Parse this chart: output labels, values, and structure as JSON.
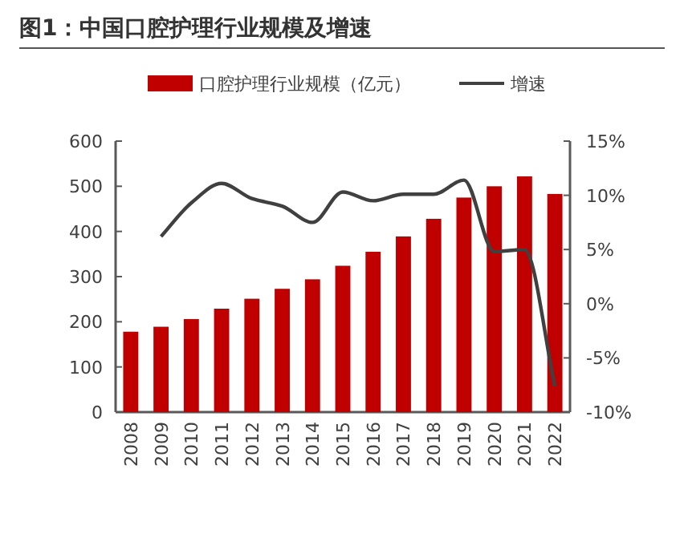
{
  "chart_data": {
    "type": "bar",
    "title": "图1：中国口腔护理行业规模及增速",
    "categories": [
      "2008",
      "2009",
      "2010",
      "2011",
      "2012",
      "2013",
      "2014",
      "2015",
      "2016",
      "2017",
      "2018",
      "2019",
      "2020",
      "2021",
      "2022"
    ],
    "series": [
      {
        "name": "口腔护理行业规模（亿元）",
        "color": "#c00000",
        "values": [
          178,
          189,
          206,
          229,
          251,
          273,
          294,
          324,
          355,
          389,
          428,
          475,
          500,
          522,
          483
        ]
      },
      {
        "name": "增速",
        "type": "line",
        "axis": "y2",
        "color": "#404040",
        "values": [
          null,
          6.2,
          9.3,
          11.1,
          9.7,
          9.0,
          7.5,
          10.3,
          9.5,
          10.1,
          10.1,
          11.4,
          4.8,
          5.0,
          -7.6
        ]
      }
    ],
    "ylim": [
      0,
      600
    ],
    "yticks": [
      0,
      100,
      200,
      300,
      400,
      500,
      600
    ],
    "y2lim": [
      -10,
      15
    ],
    "y2ticks": [
      {
        "value": -10,
        "label": "-10%"
      },
      {
        "value": -5,
        "label": "-5%"
      },
      {
        "value": 0,
        "label": "0%"
      },
      {
        "value": 5,
        "label": "5%"
      },
      {
        "value": 10,
        "label": "10%"
      },
      {
        "value": 15,
        "label": "15%"
      }
    ],
    "legend": "top",
    "grid": false,
    "marker": "none",
    "line_style": "solid"
  }
}
